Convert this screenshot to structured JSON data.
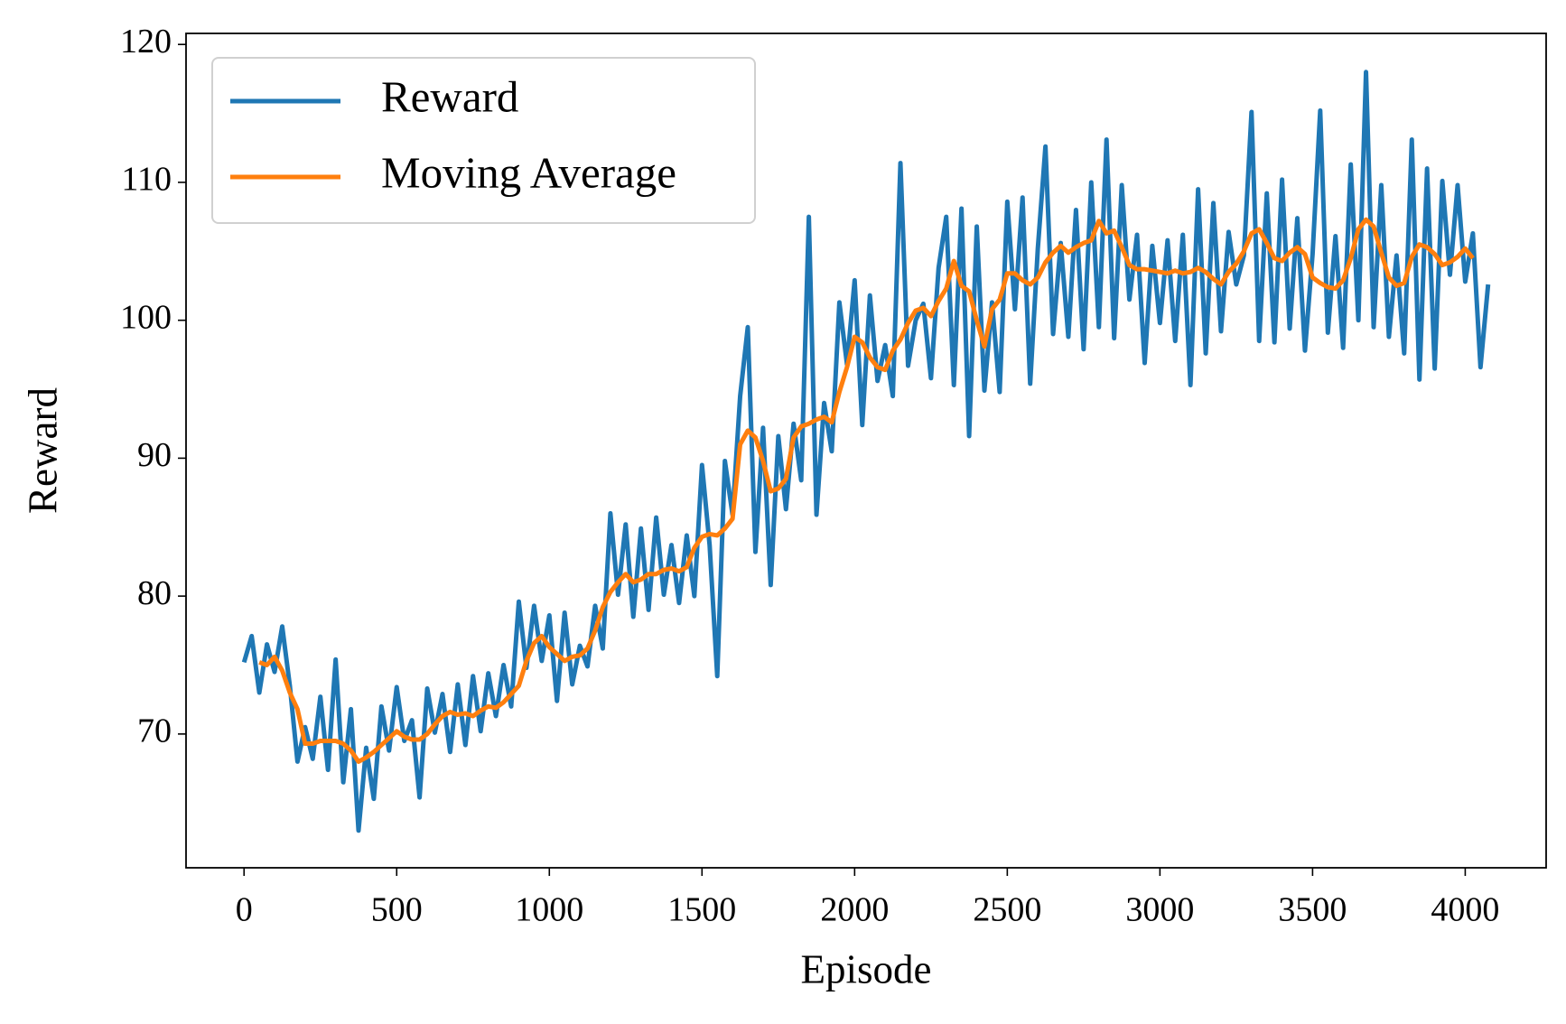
{
  "chart_data": {
    "type": "line",
    "xlabel": "Episode",
    "ylabel": "Reward",
    "xlim": [
      -190,
      4265
    ],
    "ylim": [
      60.3,
      120.8
    ],
    "xticks": [
      0,
      500,
      1000,
      1500,
      2000,
      2500,
      3000,
      3500,
      4000
    ],
    "yticks": [
      70,
      80,
      90,
      100,
      110,
      120
    ],
    "legend": "upper left",
    "series": [
      {
        "name": "Reward",
        "color": "#1f77b4",
        "x": [
          0,
          25,
          50,
          75,
          100,
          125,
          150,
          175,
          200,
          225,
          250,
          275,
          300,
          325,
          350,
          375,
          400,
          425,
          450,
          475,
          500,
          525,
          550,
          575,
          600,
          625,
          650,
          675,
          700,
          725,
          750,
          775,
          800,
          825,
          850,
          875,
          900,
          925,
          950,
          975,
          1000,
          1025,
          1050,
          1075,
          1100,
          1125,
          1150,
          1175,
          1200,
          1225,
          1250,
          1275,
          1300,
          1325,
          1350,
          1375,
          1400,
          1425,
          1450,
          1475,
          1500,
          1525,
          1550,
          1575,
          1600,
          1625,
          1650,
          1675,
          1700,
          1725,
          1750,
          1775,
          1800,
          1825,
          1850,
          1875,
          1900,
          1925,
          1950,
          1975,
          2000,
          2025,
          2050,
          2075,
          2100,
          2125,
          2150,
          2175,
          2200,
          2225,
          2250,
          2275,
          2300,
          2325,
          2350,
          2375,
          2400,
          2425,
          2450,
          2475,
          2500,
          2525,
          2550,
          2575,
          2600,
          2625,
          2650,
          2675,
          2700,
          2725,
          2750,
          2775,
          2800,
          2825,
          2850,
          2875,
          2900,
          2925,
          2950,
          2975,
          3000,
          3025,
          3050,
          3075,
          3100,
          3125,
          3150,
          3175,
          3200,
          3225,
          3250,
          3275,
          3300,
          3325,
          3350,
          3375,
          3400,
          3425,
          3450,
          3475,
          3500,
          3525,
          3550,
          3575,
          3600,
          3625,
          3650,
          3675,
          3700,
          3725,
          3750,
          3775,
          3800,
          3825,
          3850,
          3875,
          3900,
          3925,
          3950,
          3975,
          4000,
          4025,
          4050,
          4075
        ],
        "values": [
          75.2,
          77.1,
          73,
          76.5,
          74.5,
          77.8,
          73.5,
          68,
          70.5,
          68.2,
          72.7,
          67.4,
          75.4,
          66.5,
          71.8,
          63,
          69,
          65.3,
          72,
          68.8,
          73.4,
          69.5,
          71,
          65.4,
          73.3,
          70.1,
          72.9,
          68.7,
          73.6,
          69.2,
          74.2,
          70.2,
          74.4,
          71.3,
          75,
          72,
          79.6,
          74.8,
          79.3,
          75.3,
          78.6,
          72.4,
          78.8,
          73.6,
          76.4,
          74.9,
          79.3,
          76.2,
          86,
          80.1,
          85.2,
          78.5,
          84.9,
          79,
          85.7,
          80.1,
          83.7,
          79.5,
          84.4,
          80,
          89.5,
          83.7,
          74.2,
          89.8,
          85.9,
          94.5,
          99.5,
          83.2,
          92.2,
          80.8,
          91.6,
          86.3,
          92.5,
          88.4,
          107.5,
          85.9,
          94,
          90.5,
          101.3,
          96.8,
          102.9,
          92.4,
          101.8,
          95.6,
          98.2,
          94.5,
          111.4,
          96.7,
          100,
          101.2,
          95.8,
          103.8,
          107.5,
          95.3,
          108.1,
          91.6,
          106.8,
          94.9,
          101.3,
          94.8,
          108.6,
          100.8,
          108.9,
          95.4,
          105.2,
          112.6,
          99,
          105.6,
          98.8,
          108,
          97.9,
          110,
          99.5,
          113.1,
          98.7,
          109.8,
          101.5,
          106.2,
          96.9,
          105.4,
          99.8,
          105.8,
          98.5,
          106.2,
          95.3,
          109.5,
          97.6,
          108.5,
          99.2,
          106.4,
          102.6,
          104.7,
          115.1,
          98.5,
          109.2,
          98.4,
          110.2,
          99.4,
          107.4,
          97.8,
          104.8,
          115.2,
          99.1,
          106.1,
          98,
          111.3,
          100,
          118,
          99.5,
          109.8,
          98.8,
          104.7,
          97.6,
          113.1,
          95.7,
          111,
          96.5,
          110.1,
          103.3,
          109.8,
          102.8,
          106.3,
          96.6,
          102.6
        ]
      },
      {
        "name": "Moving Average",
        "color": "#ff7f0e",
        "x": [
          50,
          75,
          100,
          125,
          150,
          175,
          200,
          225,
          250,
          275,
          300,
          325,
          350,
          375,
          400,
          425,
          450,
          475,
          500,
          525,
          550,
          575,
          600,
          625,
          650,
          675,
          700,
          725,
          750,
          775,
          800,
          825,
          850,
          875,
          900,
          925,
          950,
          975,
          1000,
          1025,
          1050,
          1075,
          1100,
          1125,
          1150,
          1175,
          1200,
          1225,
          1250,
          1275,
          1300,
          1325,
          1350,
          1375,
          1400,
          1425,
          1450,
          1475,
          1500,
          1525,
          1550,
          1575,
          1600,
          1625,
          1650,
          1675,
          1700,
          1725,
          1750,
          1775,
          1800,
          1825,
          1850,
          1875,
          1900,
          1925,
          1950,
          1975,
          2000,
          2025,
          2050,
          2075,
          2100,
          2125,
          2150,
          2175,
          2200,
          2225,
          2250,
          2275,
          2300,
          2325,
          2350,
          2375,
          2400,
          2425,
          2450,
          2475,
          2500,
          2525,
          2550,
          2575,
          2600,
          2625,
          2650,
          2675,
          2700,
          2725,
          2750,
          2775,
          2800,
          2825,
          2850,
          2875,
          2900,
          2925,
          2950,
          2975,
          3000,
          3025,
          3050,
          3075,
          3100,
          3125,
          3150,
          3175,
          3200,
          3225,
          3250,
          3275,
          3300,
          3325,
          3350,
          3375,
          3400,
          3425,
          3450,
          3475,
          3500,
          3525,
          3550,
          3575,
          3600,
          3625,
          3650,
          3675,
          3700,
          3725,
          3750,
          3775,
          3800,
          3825,
          3850,
          3875,
          3900,
          3925,
          3950,
          3975,
          4000,
          4025
        ],
        "values": [
          75.2,
          75,
          75.6,
          74.6,
          73,
          71.8,
          69.3,
          69.3,
          69.5,
          69.5,
          69.5,
          69.3,
          68.8,
          68,
          68.3,
          68.7,
          69.2,
          69.7,
          70.2,
          69.8,
          69.6,
          69.6,
          70,
          70.7,
          71.3,
          71.6,
          71.4,
          71.5,
          71.3,
          71.7,
          72,
          71.9,
          72.3,
          72.9,
          73.5,
          75.3,
          76.6,
          77.1,
          76.3,
          75.8,
          75.3,
          75.6,
          75.7,
          76.2,
          77.5,
          79.2,
          80.3,
          81,
          81.6,
          81,
          81.2,
          81.6,
          81.6,
          81.9,
          82,
          81.8,
          82.1,
          83.5,
          84.3,
          84.5,
          84.4,
          84.9,
          85.6,
          91,
          92,
          91.5,
          89.8,
          87.6,
          87.8,
          88.5,
          91.5,
          92.3,
          92.5,
          92.8,
          93,
          92.6,
          94.8,
          96.6,
          98.8,
          98.4,
          97.3,
          96.6,
          96.4,
          97.8,
          98.6,
          99.8,
          100.7,
          100.9,
          100.3,
          101.4,
          102.3,
          104.3,
          102.5,
          102.1,
          100,
          98.1,
          100.8,
          101.5,
          103.4,
          103.4,
          102.9,
          102.6,
          103.1,
          104.2,
          104.9,
          105.4,
          104.9,
          105.3,
          105.6,
          105.8,
          107.2,
          106.3,
          106.5,
          105.3,
          104,
          103.7,
          103.7,
          103.6,
          103.5,
          103.4,
          103.6,
          103.4,
          103.5,
          103.8,
          103.5,
          103,
          102.6,
          103.5,
          104.1,
          105,
          106.3,
          106.6,
          105.6,
          104.5,
          104.3,
          104.9,
          105.3,
          104.8,
          103.1,
          102.7,
          102.4,
          102.3,
          102.9,
          104.5,
          106.6,
          107.3,
          106.8,
          104.9,
          103.1,
          102.5,
          102.7,
          104.6,
          105.5,
          105.3,
          104.8,
          104,
          104.2,
          104.6,
          105.2,
          104.5
        ]
      }
    ]
  }
}
